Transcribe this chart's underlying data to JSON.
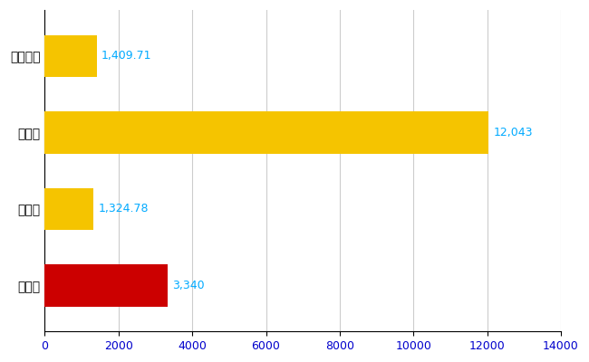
{
  "categories": [
    "越谷市",
    "県平均",
    "県最大",
    "全国平均"
  ],
  "values": [
    3340,
    1324.78,
    12043,
    1409.71
  ],
  "bar_colors": [
    "#cc0000",
    "#f5c400",
    "#f5c400",
    "#f5c400"
  ],
  "value_labels": [
    "3,340",
    "1,324.78",
    "12,043",
    "1,409.71"
  ],
  "label_color": "#00aaff",
  "xlim": [
    0,
    14000
  ],
  "xticks": [
    0,
    2000,
    4000,
    6000,
    8000,
    10000,
    12000,
    14000
  ],
  "xtick_labels": [
    "0",
    "2000",
    "4000",
    "6000",
    "8000",
    "10000",
    "12000",
    "14000"
  ],
  "grid_color": "#cccccc",
  "bg_color": "#ffffff",
  "label_fontsize": 9,
  "tick_fontsize": 9,
  "ytick_fontsize": 10,
  "bar_height": 0.55
}
